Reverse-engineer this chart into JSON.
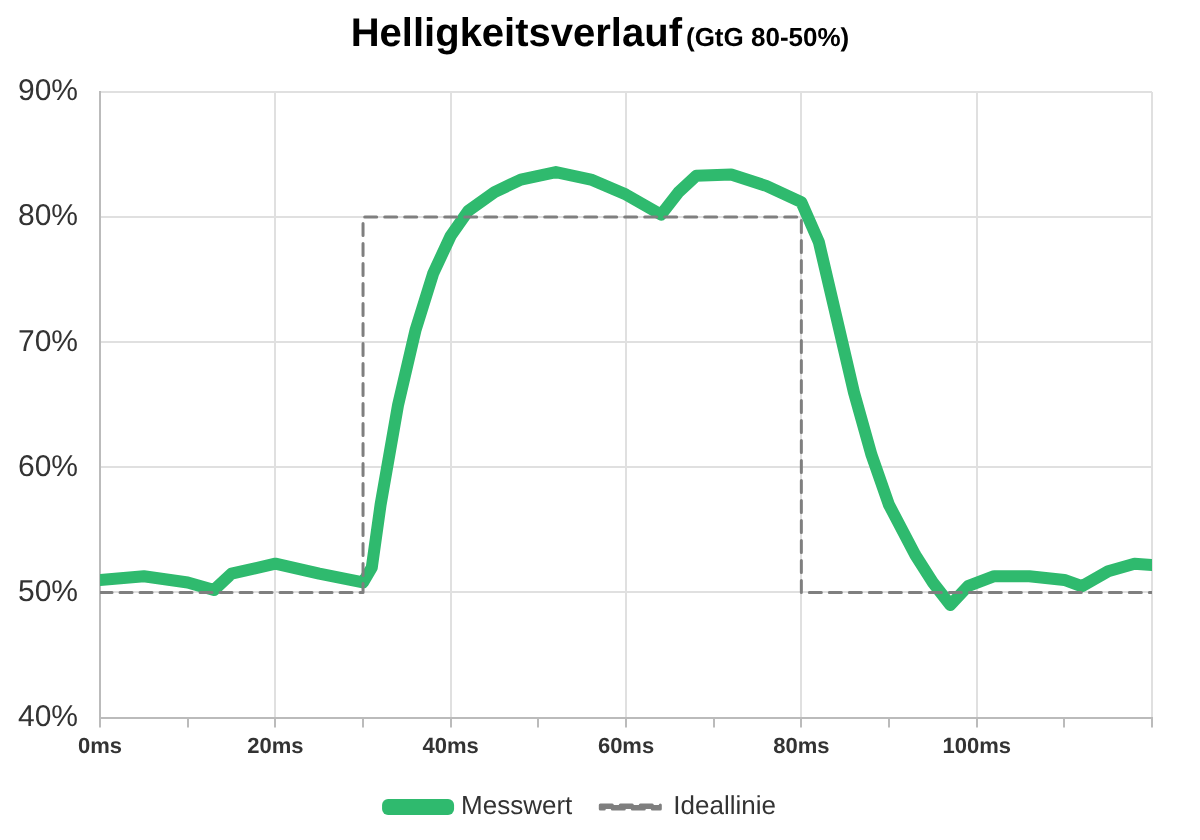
{
  "chart_data": {
    "type": "line",
    "title": "Helligkeitsverlauf",
    "subtitle": "(GtG 80-50%)",
    "xlim": [
      0,
      120
    ],
    "xticks": [
      {
        "value": 0,
        "label": "0ms"
      },
      {
        "value": 10,
        "label": null
      },
      {
        "value": 20,
        "label": "20ms"
      },
      {
        "value": 30,
        "label": null
      },
      {
        "value": 40,
        "label": "40ms"
      },
      {
        "value": 50,
        "label": null
      },
      {
        "value": 60,
        "label": "60ms"
      },
      {
        "value": 70,
        "label": null
      },
      {
        "value": 80,
        "label": "80ms"
      },
      {
        "value": 90,
        "label": null
      },
      {
        "value": 100,
        "label": "100ms"
      },
      {
        "value": 110,
        "label": null
      },
      {
        "value": 120,
        "label": null
      }
    ],
    "ylim": [
      40,
      90
    ],
    "yticks": [
      {
        "value": 40,
        "label": "40%"
      },
      {
        "value": 50,
        "label": "50%"
      },
      {
        "value": 60,
        "label": "60%"
      },
      {
        "value": 70,
        "label": "70%"
      },
      {
        "value": 80,
        "label": "80%"
      },
      {
        "value": 90,
        "label": "90%"
      }
    ],
    "grid": true,
    "legend": "bottom",
    "marker": "none",
    "series": [
      {
        "name": "Messwert",
        "color": "#2fba6e",
        "line_style": "solid",
        "x": [
          0,
          5,
          10,
          13,
          15,
          20,
          25,
          30,
          31,
          32,
          34,
          36,
          38,
          40,
          42,
          45,
          48,
          52,
          56,
          60,
          62,
          64,
          66,
          68,
          72,
          76,
          80,
          82,
          84,
          86,
          88,
          90,
          93,
          95,
          97,
          99,
          102,
          106,
          110,
          112,
          115,
          118,
          120
        ],
        "values": [
          51,
          51.3,
          50.8,
          50.2,
          51.5,
          52.3,
          51.5,
          50.8,
          52,
          57,
          65,
          71,
          75.5,
          78.5,
          80.5,
          82,
          83,
          83.6,
          83,
          81.8,
          81,
          80.2,
          82,
          83.3,
          83.4,
          82.5,
          81.2,
          78,
          72,
          66,
          61,
          57,
          53,
          50.8,
          49,
          50.5,
          51.3,
          51.3,
          51,
          50.5,
          51.7,
          52.3,
          52.2
        ]
      },
      {
        "name": "Ideallinie",
        "color": "#7f7f7f",
        "line_style": "dashed",
        "x": [
          0,
          30,
          30,
          80,
          80,
          120
        ],
        "values": [
          50,
          50,
          80,
          80,
          50,
          50
        ]
      }
    ]
  }
}
